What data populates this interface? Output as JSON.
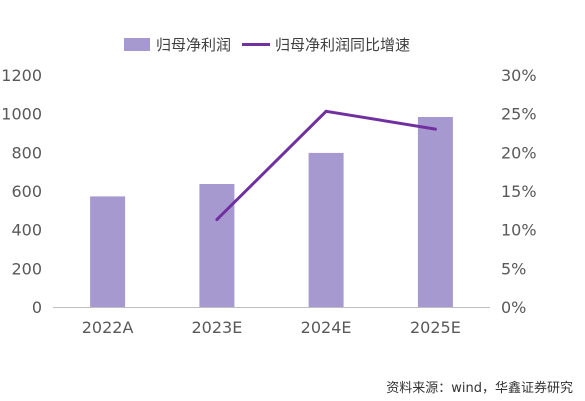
{
  "chart_data": {
    "type": "bar",
    "categories": [
      "2022A",
      "2023E",
      "2024E",
      "2025E"
    ],
    "series": [
      {
        "name": "归母净利润",
        "type": "bar",
        "axis": "left",
        "values": [
          572,
          636,
          797,
          983
        ]
      },
      {
        "name": "归母净利润同比增速",
        "type": "line",
        "axis": "right",
        "values": [
          null,
          11.3,
          25.3,
          23.0
        ]
      }
    ],
    "left_axis": {
      "min": 0,
      "max": 1200,
      "ticks": [
        "0",
        "200",
        "400",
        "600",
        "800",
        "1000",
        "1200"
      ]
    },
    "right_axis": {
      "min": 0,
      "max": 30,
      "ticks": [
        "0%",
        "5%",
        "10%",
        "15%",
        "20%",
        "25%",
        "30%"
      ]
    },
    "legend_position": "top-center",
    "grid": false,
    "colors": {
      "bar": "#a699cf",
      "line": "#7030a0",
      "axis": "#bfbfbf"
    }
  },
  "source_text": "资料来源：wind，华鑫证券研究"
}
